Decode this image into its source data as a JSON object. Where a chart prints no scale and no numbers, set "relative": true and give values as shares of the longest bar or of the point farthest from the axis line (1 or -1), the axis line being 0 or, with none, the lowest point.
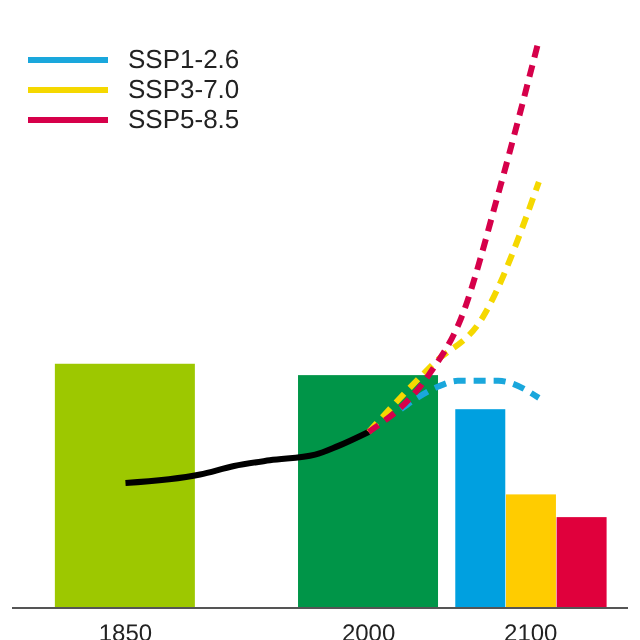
{
  "chart_data": {
    "type": "bar",
    "relative": true,
    "xlim": [
      1780,
      2160
    ],
    "xticks": [
      1850,
      2000,
      2100
    ],
    "legend": "top left",
    "series": [
      {
        "x": [
          1850,
          2000
        ],
        "values": [
          0.43,
          0.41
        ],
        "colors": [
          "#9dc800",
          "#009548"
        ]
      },
      {
        "x": [
          2069
        ],
        "values": [
          0.35
        ],
        "color": "#00a0e0"
      },
      {
        "x": [
          2100
        ],
        "values": [
          0.2
        ],
        "color": "#ffcc00"
      },
      {
        "x": [
          2131
        ],
        "values": [
          0.16
        ],
        "color": "#e0003c"
      },
      {
        "type": "line",
        "x": [
          1850,
          1896,
          1917,
          1939,
          1967,
          1981,
          2000
        ],
        "values": [
          0.22,
          0.235,
          0.25,
          0.26,
          0.27,
          0.285,
          0.31
        ],
        "color": "#000000",
        "line_style": "solid"
      },
      {
        "type": "line",
        "name": "SSP1-2.6",
        "x": [
          2020,
          2030,
          2043,
          2055,
          2080,
          2105
        ],
        "values": [
          0.35,
          0.37,
          0.39,
          0.4,
          0.4,
          0.37
        ],
        "color": "#1aa7dc",
        "line_style": "dashed"
      },
      {
        "type": "line",
        "name": "SSP3-7.0",
        "x": [
          2000,
          2040,
          2070,
          2105
        ],
        "values": [
          0.31,
          0.43,
          0.51,
          0.75
        ],
        "color": "#f5d800",
        "line_style": "dashed"
      },
      {
        "type": "line",
        "name": "SSP5-8.5",
        "x": [
          2000,
          2037,
          2057,
          2081,
          2105
        ],
        "values": [
          0.31,
          0.41,
          0.51,
          0.74,
          1
        ],
        "color": "#d6004a",
        "line_style": "dashed"
      }
    ]
  }
}
